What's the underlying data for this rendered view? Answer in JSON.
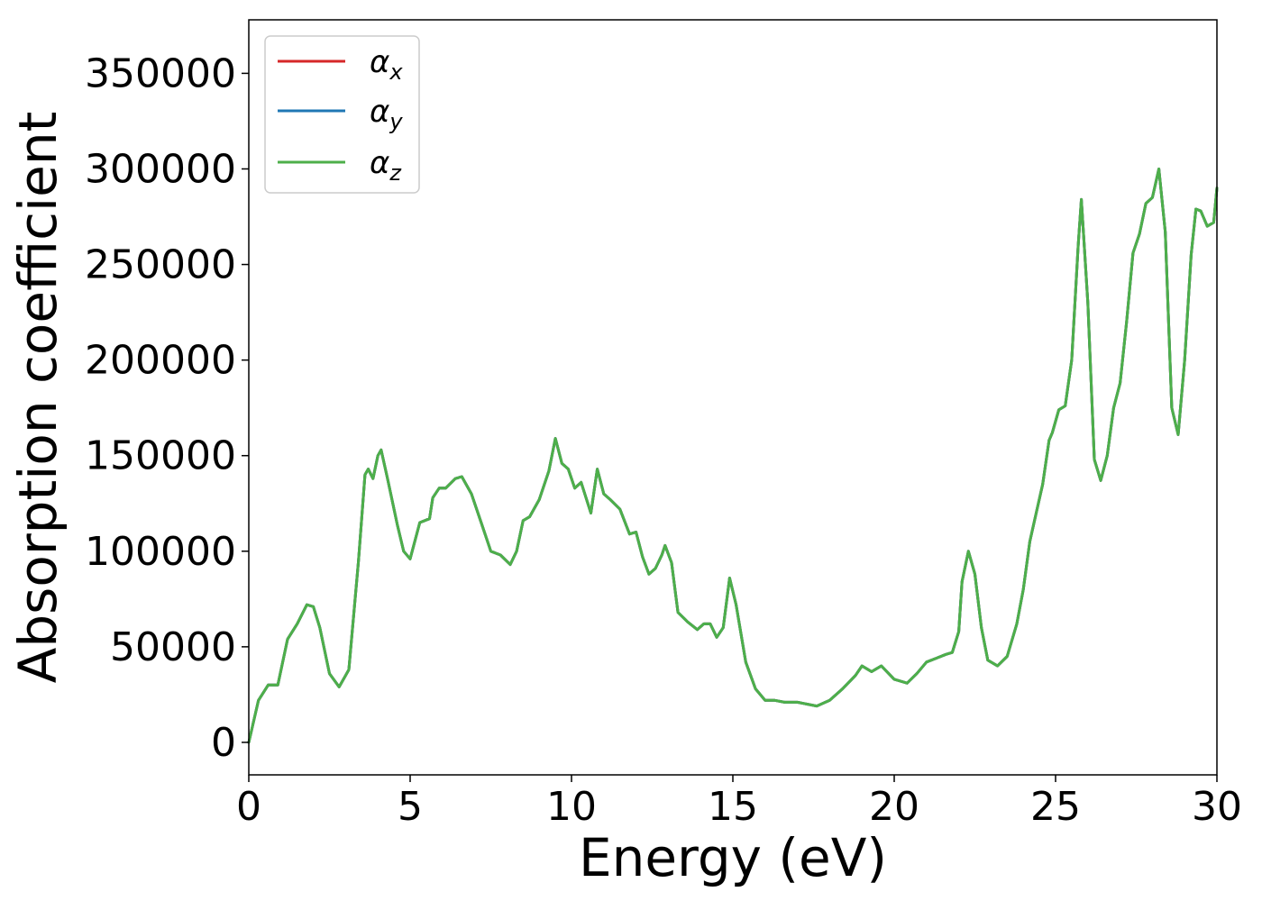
{
  "chart_data": {
    "type": "line",
    "xlabel": "Energy (eV)",
    "ylabel": "Absorption coefficient",
    "xlim": [
      0,
      30
    ],
    "ylim": [
      -17000,
      378000
    ],
    "x_ticks": [
      0,
      5,
      10,
      15,
      20,
      25,
      30
    ],
    "x_tick_labels": [
      "0",
      "5",
      "10",
      "15",
      "20",
      "25",
      "30"
    ],
    "y_ticks": [
      0,
      50000,
      100000,
      150000,
      200000,
      250000,
      300000,
      350000
    ],
    "y_tick_labels": [
      "0",
      "50000",
      "100000",
      "150000",
      "200000",
      "250000",
      "300000",
      "350000"
    ],
    "grid": false,
    "legend_position": "top-left",
    "legend": [
      {
        "symbol": "α",
        "sub": "x"
      },
      {
        "symbol": "α",
        "sub": "y"
      },
      {
        "symbol": "α",
        "sub": "z"
      }
    ],
    "series": [
      {
        "color": "#d62728",
        "curve": "shared"
      },
      {
        "color": "#1f77b4",
        "curve": "shared"
      },
      {
        "color": "#4daf4a",
        "curve": "shared"
      }
    ],
    "curve": {
      "x": [
        0,
        0.3,
        0.6,
        0.9,
        1.2,
        1.5,
        1.8,
        2.0,
        2.2,
        2.5,
        2.8,
        3.1,
        3.4,
        3.6,
        3.7,
        3.85,
        4.0,
        4.1,
        4.3,
        4.6,
        4.8,
        5.0,
        5.3,
        5.6,
        5.7,
        5.9,
        6.1,
        6.4,
        6.6,
        6.9,
        7.2,
        7.5,
        7.8,
        8.1,
        8.3,
        8.5,
        8.7,
        9.0,
        9.3,
        9.5,
        9.7,
        9.9,
        10.1,
        10.3,
        10.6,
        10.8,
        11.0,
        11.2,
        11.5,
        11.8,
        12.0,
        12.2,
        12.4,
        12.6,
        12.8,
        12.9,
        13.1,
        13.3,
        13.6,
        13.9,
        14.1,
        14.3,
        14.5,
        14.7,
        14.9,
        15.1,
        15.4,
        15.7,
        16.0,
        16.3,
        16.6,
        17.0,
        17.3,
        17.6,
        18.0,
        18.4,
        18.8,
        19.0,
        19.3,
        19.6,
        20.0,
        20.4,
        20.7,
        21.0,
        21.3,
        21.6,
        21.8,
        22.0,
        22.1,
        22.3,
        22.5,
        22.7,
        22.9,
        23.2,
        23.5,
        23.8,
        24.0,
        24.2,
        24.4,
        24.6,
        24.8,
        24.9,
        25.1,
        25.3,
        25.5,
        25.7,
        25.8,
        26.0,
        26.2,
        26.4,
        26.6,
        26.8,
        27.0,
        27.2,
        27.4,
        27.6,
        27.8,
        28.0,
        28.2,
        28.4,
        28.6,
        28.8,
        29.0,
        29.2,
        29.35,
        29.5,
        29.7,
        29.9,
        30.0
      ],
      "y": [
        0,
        22000,
        30000,
        30000,
        54000,
        62000,
        72000,
        71000,
        60000,
        36000,
        29000,
        38000,
        95000,
        140000,
        143000,
        138000,
        150000,
        153000,
        138000,
        114000,
        100000,
        96000,
        115000,
        117000,
        128000,
        133000,
        133000,
        138000,
        139000,
        130000,
        115000,
        100000,
        98000,
        93000,
        100000,
        116000,
        118000,
        127000,
        142000,
        159000,
        146000,
        143000,
        133000,
        136000,
        120000,
        143000,
        130000,
        127000,
        122000,
        109000,
        110000,
        97000,
        88000,
        91000,
        98000,
        103000,
        94000,
        68000,
        63000,
        59000,
        62000,
        62000,
        55000,
        60000,
        86000,
        72000,
        42000,
        28000,
        22000,
        22000,
        21000,
        21000,
        20000,
        19000,
        22000,
        28000,
        35000,
        40000,
        37000,
        40000,
        33000,
        31000,
        36000,
        42000,
        44000,
        46000,
        47000,
        58000,
        84000,
        100000,
        88000,
        60000,
        43000,
        40000,
        45000,
        62000,
        80000,
        105000,
        120000,
        135000,
        158000,
        162000,
        174000,
        176000,
        200000,
        260000,
        284000,
        230000,
        148000,
        137000,
        150000,
        175000,
        188000,
        220000,
        256000,
        266000,
        282000,
        285000,
        300000,
        267000,
        175000,
        161000,
        200000,
        255000,
        279000,
        278000,
        270000,
        272000,
        290000
      ]
    }
  }
}
